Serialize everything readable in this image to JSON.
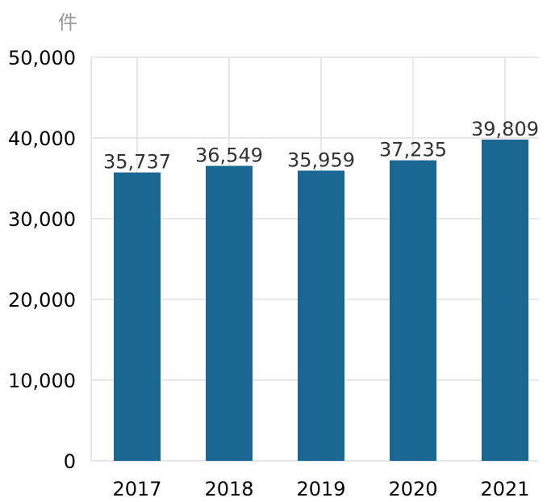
{
  "chart_data": {
    "type": "bar",
    "unit": "件",
    "categories": [
      "2017",
      "2018",
      "2019",
      "2020",
      "2021"
    ],
    "values": [
      35737,
      36549,
      35959,
      37235,
      39809
    ],
    "value_labels": [
      "35,737",
      "36,549",
      "35,959",
      "37,235",
      "39,809"
    ],
    "yticks": [
      0,
      10000,
      20000,
      30000,
      40000,
      50000
    ],
    "ytick_labels": [
      "0",
      "10,000",
      "20,000",
      "30,000",
      "40,000",
      "50,000"
    ],
    "ylim": [
      0,
      50000
    ],
    "grid": true,
    "bar_color": "#1b6794",
    "grid_color": "#e8e8e8"
  }
}
